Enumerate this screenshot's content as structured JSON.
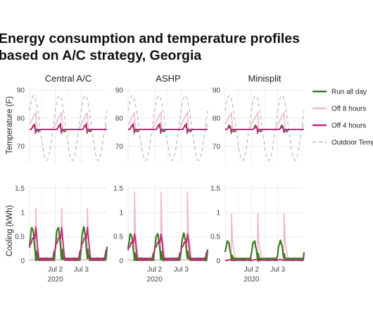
{
  "title_lines": [
    "Energy consumption and temperature profiles",
    "based on A/C strategy, Georgia"
  ],
  "facets": [
    "Central A/C",
    "ASHP",
    "Minisplit"
  ],
  "legend": [
    {
      "label": "Run all day",
      "color": "#3a7d22",
      "dash": false
    },
    {
      "label": "Off 8 hours",
      "color": "#f2b8cb",
      "dash": false
    },
    {
      "label": "Off 4 hours",
      "color": "#c2257a",
      "dash": false
    },
    {
      "label": "Outdoor Temp",
      "color": "#aaaaaa",
      "dash": true
    }
  ],
  "chart_data": [
    {
      "type": "line",
      "panel": "temperature",
      "ylabel": "Temperature (F)",
      "ylim": [
        64,
        91
      ],
      "yticks": [
        70,
        80,
        90
      ],
      "grid": true,
      "x_period_days": 1.0,
      "series": [
        {
          "name": "Outdoor Temp",
          "peak": 88,
          "trough": 65
        },
        {
          "name": "Run all day",
          "baseline": 76,
          "peak_by_facet": [
            77.5,
            77.5,
            77.5
          ]
        },
        {
          "name": "Off 8 hours",
          "baseline": 76,
          "peak_by_facet": [
            82,
            82,
            82
          ]
        },
        {
          "name": "Off 4 hours",
          "baseline": 76,
          "peak_by_facet": [
            78,
            78,
            77
          ]
        }
      ]
    },
    {
      "type": "line",
      "panel": "cooling",
      "ylabel": "Cooling (kWh)",
      "ylim": [
        -0.05,
        1.58
      ],
      "yticks": [
        0,
        0.5,
        1,
        1.5
      ],
      "ytick_labels": [
        "0",
        "0.5",
        "1",
        "1.5"
      ],
      "grid": true,
      "xticks": [
        {
          "label": "Jul 2",
          "sub": "2020"
        },
        {
          "label": "Jul 3",
          "sub": ""
        }
      ],
      "series": [
        {
          "name": "Run all day",
          "peak_by_facet": [
            0.68,
            0.55,
            0.4
          ]
        },
        {
          "name": "Off 8 hours",
          "peak_by_facet": [
            1.1,
            1.43,
            0.98
          ]
        },
        {
          "name": "Off 4 hours",
          "peak_by_facet": [
            0.72,
            0.58,
            0.03
          ]
        }
      ]
    }
  ]
}
